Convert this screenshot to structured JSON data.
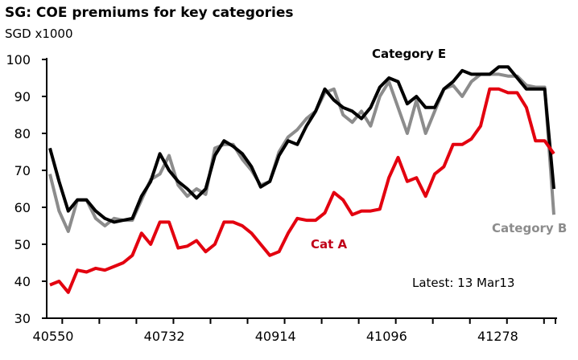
{
  "chart_data": {
    "type": "line",
    "title": "SG: COE premiums for key categories",
    "ylabel": "SGD x1000",
    "ylim": [
      30,
      100
    ],
    "yticks": [
      30,
      40,
      50,
      60,
      70,
      80,
      90,
      100
    ],
    "xlim": [
      40545,
      41390
    ],
    "xticks": [
      40550,
      40732,
      40914,
      41096,
      41278
    ],
    "grid": false,
    "annotation": "Latest: 13 Mar13",
    "x": [
      40550,
      40565,
      40580,
      40595,
      40610,
      40625,
      40640,
      40655,
      40670,
      40685,
      40700,
      40715,
      40730,
      40745,
      40760,
      40775,
      40790,
      40805,
      40820,
      40835,
      40850,
      40865,
      40880,
      40895,
      40910,
      40925,
      40940,
      40955,
      40970,
      40985,
      41000,
      41015,
      41030,
      41045,
      41060,
      41075,
      41090,
      41105,
      41120,
      41135,
      41150,
      41165,
      41180,
      41195,
      41210,
      41225,
      41240,
      41255,
      41270,
      41285,
      41300,
      41315,
      41330,
      41345,
      41360,
      41375
    ],
    "series": [
      {
        "name": "Category B",
        "color": "#8c8c8c",
        "values": [
          69,
          59,
          53.5,
          62,
          62,
          57,
          55,
          57,
          56.5,
          56.5,
          62,
          67.5,
          69,
          74,
          66,
          63,
          65,
          63.5,
          76,
          77,
          77,
          73,
          70,
          66,
          67,
          75,
          79,
          81,
          84,
          86,
          91,
          92,
          85,
          83,
          86,
          82,
          90,
          94,
          87,
          80,
          89,
          80,
          86,
          92,
          93,
          90,
          94,
          96,
          96,
          96,
          95.5,
          95.5,
          93,
          92.5,
          92.5,
          58
        ]
      },
      {
        "name": "Category E",
        "color": "#000000",
        "values": [
          76,
          67,
          59,
          62,
          62,
          59,
          57,
          56,
          56.5,
          57,
          63,
          67,
          74.5,
          70,
          67,
          65,
          62.5,
          65,
          74,
          78,
          76.5,
          74.5,
          71,
          65.5,
          67,
          74,
          78,
          77,
          82,
          86,
          92,
          89,
          87,
          86,
          84,
          87,
          92.5,
          95,
          94,
          88,
          90,
          87,
          87,
          92,
          94,
          97,
          96,
          96,
          96,
          98,
          98,
          95,
          92,
          92,
          92,
          65
        ]
      },
      {
        "name": "Cat A",
        "color": "#e3000f",
        "values": [
          39,
          40,
          37,
          43,
          42.5,
          43.5,
          43,
          44,
          45,
          47,
          53,
          50,
          56,
          56,
          49,
          49.5,
          51,
          48,
          50,
          56,
          56,
          55,
          53,
          50,
          47,
          48,
          53,
          57,
          56.5,
          56.5,
          58.5,
          64,
          62,
          58,
          59,
          59,
          59.5,
          68,
          73.5,
          67,
          68,
          63,
          69,
          71,
          77,
          77,
          78.5,
          82,
          92,
          92,
          91,
          91,
          87,
          78,
          78,
          74.5
        ]
      }
    ]
  }
}
